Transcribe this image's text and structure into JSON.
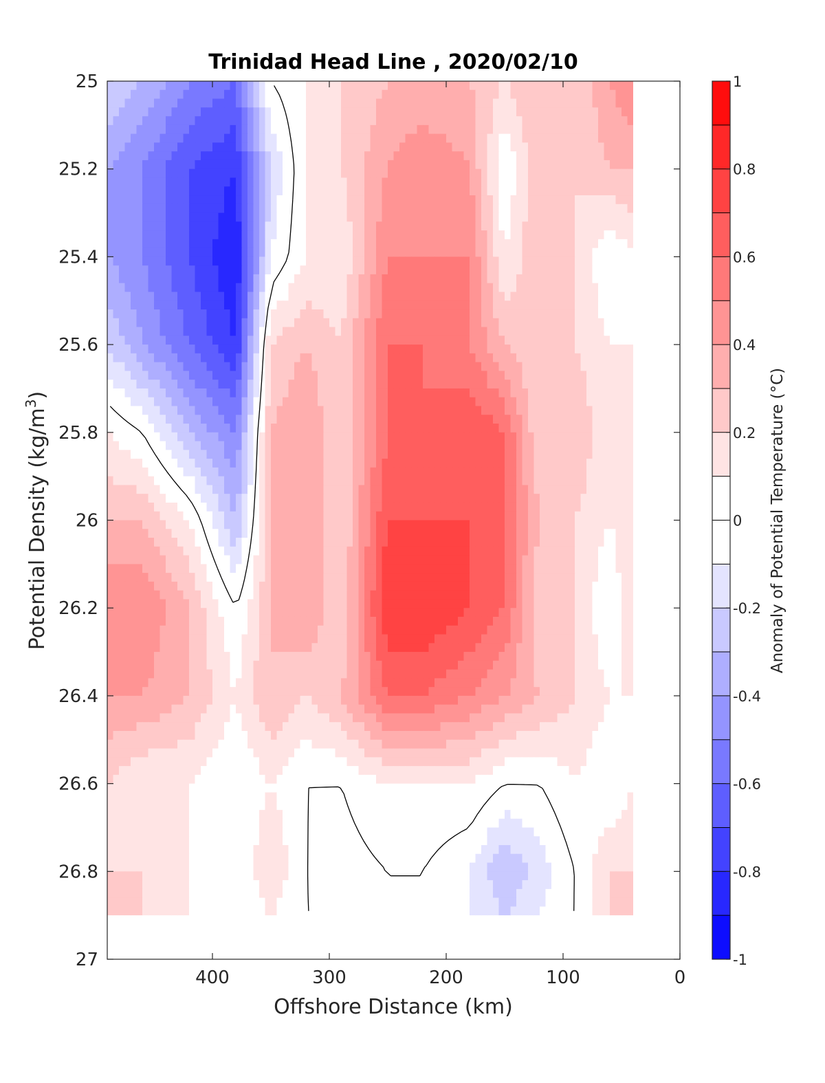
{
  "chart_data": {
    "type": "heatmap",
    "subtype": "filled-contour",
    "title": "Trinidad Head Line , 2020/02/10",
    "xlabel": "Offshore Distance (km)",
    "ylabel_main": "Potential Density (kg/m",
    "ylabel_sup": "3",
    "ylabel_close": ")",
    "colorbar_label": "Anomaly of Potential Temperature (°C)",
    "x_reversed": true,
    "y_reversed": true,
    "xlim": [
      0,
      490
    ],
    "ylim": [
      25,
      27
    ],
    "xticks": [
      400,
      300,
      200,
      100,
      0
    ],
    "yticks": [
      25,
      25.2,
      25.4,
      25.6,
      25.8,
      26,
      26.2,
      26.4,
      26.6,
      26.8,
      27
    ],
    "ytick_labels": [
      "25",
      "25.2",
      "25.4",
      "25.6",
      "25.8",
      "26",
      "26.2",
      "26.4",
      "26.6",
      "26.8",
      "27"
    ],
    "colorbar": {
      "range": [
        -1,
        1
      ],
      "step": 0.1,
      "tick_values": [
        1,
        0.8,
        0.6,
        0.4,
        0.2,
        0,
        -0.2,
        -0.4,
        -0.6,
        -0.8,
        -1
      ],
      "tick_labels": [
        "1",
        "0.8",
        "0.6",
        "0.4",
        "0.2",
        "0",
        "-0.2",
        "-0.4",
        "-0.6",
        "-0.8",
        "-1"
      ],
      "negative_color": "#0000ff",
      "positive_color": "#ff0000",
      "neutral_color": "#ffffff"
    },
    "data_extent": {
      "x": [
        40,
        490
      ],
      "y": [
        25,
        26.9
      ]
    },
    "grid": {
      "x": [
        490,
        460,
        420,
        380,
        350,
        320,
        290,
        250,
        220,
        180,
        150,
        120,
        90,
        60,
        40
      ],
      "y": [
        25.0,
        25.2,
        25.4,
        25.6,
        25.8,
        26.0,
        26.2,
        26.4,
        26.6,
        26.8,
        26.9
      ],
      "values": [
        [
          -0.2,
          -0.3,
          -0.5,
          -0.6,
          0.0,
          0.1,
          0.2,
          0.3,
          0.3,
          0.3,
          0.2,
          0.3,
          0.2,
          0.4,
          0.5
        ],
        [
          -0.4,
          -0.5,
          -0.7,
          -0.8,
          -0.2,
          0.1,
          0.2,
          0.4,
          0.5,
          0.4,
          0.0,
          0.3,
          0.2,
          0.3,
          0.3
        ],
        [
          -0.4,
          -0.5,
          -0.7,
          -0.9,
          -0.1,
          0.1,
          0.1,
          0.5,
          0.5,
          0.5,
          0.1,
          0.3,
          0.2,
          0.0,
          0.1
        ],
        [
          -0.2,
          -0.4,
          -0.6,
          -0.8,
          0.2,
          0.3,
          0.2,
          0.6,
          0.6,
          0.5,
          0.3,
          0.2,
          0.2,
          0.1,
          0.1
        ],
        [
          0.1,
          0.0,
          -0.3,
          -0.5,
          0.3,
          0.4,
          0.2,
          0.6,
          0.6,
          0.7,
          0.6,
          0.2,
          0.3,
          0.1,
          0.1
        ],
        [
          0.3,
          0.3,
          0.1,
          -0.3,
          0.3,
          0.4,
          0.2,
          0.7,
          0.7,
          0.7,
          0.6,
          0.3,
          0.2,
          0.1,
          0.2
        ],
        [
          0.5,
          0.5,
          0.3,
          0.0,
          0.3,
          0.4,
          0.2,
          0.8,
          0.8,
          0.7,
          0.6,
          0.2,
          0.2,
          0.0,
          0.2
        ],
        [
          0.4,
          0.4,
          0.3,
          0.1,
          0.3,
          0.2,
          0.3,
          0.6,
          0.6,
          0.5,
          0.4,
          0.3,
          0.2,
          0.1,
          0.1
        ],
        [
          0.2,
          0.1,
          0.1,
          0.0,
          0.1,
          0.0,
          0.0,
          0.1,
          0.1,
          0.1,
          0.0,
          0.0,
          0.1,
          0.0,
          0.1
        ],
        [
          0.2,
          0.2,
          0.1,
          0.0,
          0.2,
          0.0,
          -0.05,
          0.0,
          0.0,
          -0.1,
          -0.3,
          -0.15,
          0.0,
          0.2,
          0.2
        ],
        [
          0.2,
          0.2,
          0.1,
          0.0,
          0.1,
          0.0,
          0.0,
          0.0,
          0.0,
          -0.1,
          -0.2,
          -0.1,
          0.0,
          0.2,
          0.2
        ]
      ]
    },
    "zero_contour": true
  }
}
